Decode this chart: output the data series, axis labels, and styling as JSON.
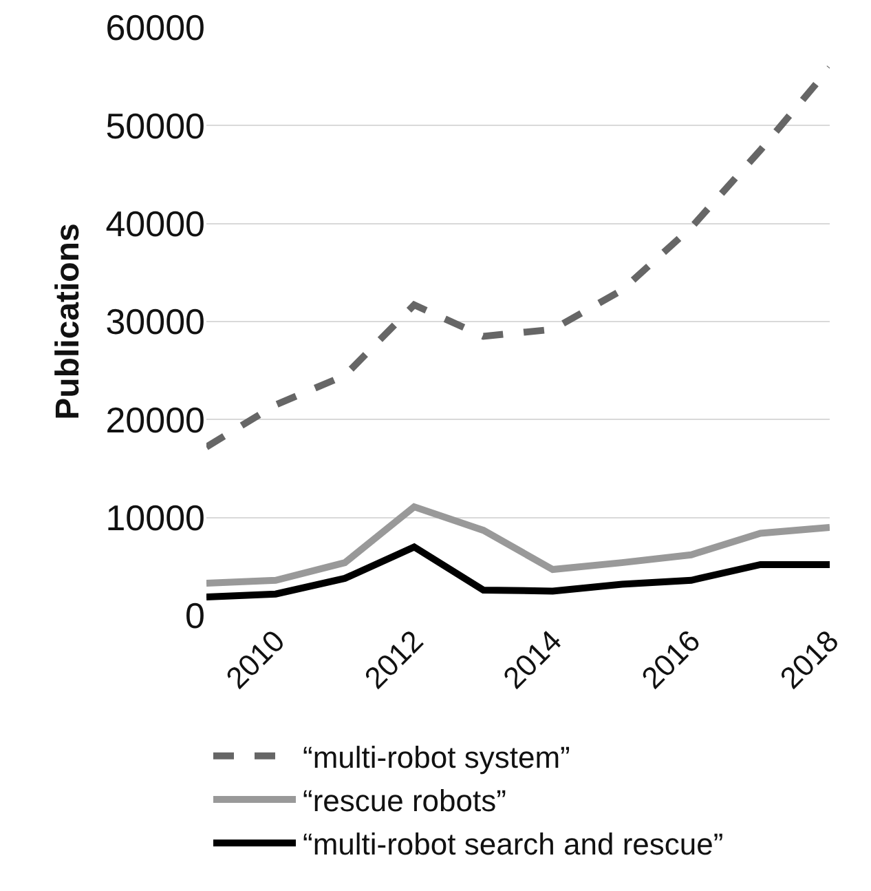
{
  "chart_data": {
    "type": "line",
    "ylabel": "Publications",
    "x": [
      2009,
      2010,
      2011,
      2012,
      2013,
      2014,
      2015,
      2016,
      2017,
      2018
    ],
    "series": [
      {
        "name": "“multi-robot system”",
        "color": "#666666",
        "line_style": "dashed",
        "values": [
          17200,
          21500,
          24500,
          31700,
          28500,
          29200,
          33200,
          39600,
          47500,
          55900
        ]
      },
      {
        "name": "“rescue robots”",
        "color": "#999999",
        "line_style": "solid",
        "values": [
          3300,
          3600,
          5400,
          11100,
          8700,
          4700,
          5400,
          6200,
          8400,
          9000
        ]
      },
      {
        "name": "“multi-robot search and rescue”",
        "color": "#000000",
        "line_style": "solid",
        "values": [
          1900,
          2200,
          3800,
          7000,
          2600,
          2500,
          3200,
          3600,
          5200,
          5200
        ]
      }
    ],
    "xlim": [
      2009,
      2018
    ],
    "xticks": [
      2010,
      2012,
      2014,
      2016,
      2018
    ],
    "ylim": [
      0,
      60000
    ],
    "yticks": [
      0,
      10000,
      20000,
      30000,
      40000,
      50000,
      60000
    ],
    "grid": "y",
    "legend": "bottom",
    "marker": "none"
  }
}
